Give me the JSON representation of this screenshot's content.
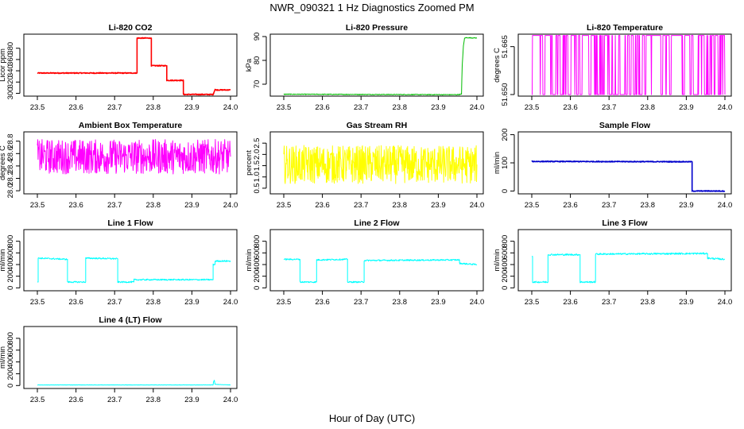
{
  "figure": {
    "title": "NWR_090321  1 Hz Diagnostics Zoomed PM",
    "xlabel": "Hour of Day (UTC)"
  },
  "chart_data": [
    {
      "id": "co2",
      "type": "line",
      "title": "Li-820 CO2",
      "ylabel": "Licor ppm",
      "color": "#ff0000",
      "xlim": [
        23.5,
        24.0
      ],
      "ylim": [
        295,
        405
      ],
      "xticks": [
        "23.5",
        "23.6",
        "23.7",
        "23.8",
        "23.9",
        "24.0"
      ],
      "yticks": [
        300,
        320,
        340,
        360,
        380
      ],
      "x": [
        23.5,
        23.758,
        23.758,
        23.795,
        23.795,
        23.835,
        23.835,
        23.878,
        23.878,
        23.955,
        23.955,
        23.96,
        23.96,
        24.0
      ],
      "values": [
        336,
        336,
        398,
        398,
        349,
        349,
        323,
        323,
        298,
        298,
        298,
        307,
        306,
        306
      ],
      "noise": 0.8
    },
    {
      "id": "pressure",
      "type": "line",
      "title": "Li-820 Pressure",
      "ylabel": "kPa",
      "color": "#00bb00",
      "xlim": [
        23.5,
        24.0
      ],
      "ylim": [
        65,
        91
      ],
      "xticks": [
        "23.5",
        "23.6",
        "23.7",
        "23.8",
        "23.9",
        "24.0"
      ],
      "yticks": [
        70,
        80,
        90
      ],
      "x": [
        23.5,
        23.948,
        23.96,
        23.962,
        23.965,
        23.968,
        23.97,
        24.0
      ],
      "values": [
        65.8,
        65.6,
        65.8,
        78,
        86,
        89.3,
        89.5,
        89.4
      ],
      "noise": 0.15
    },
    {
      "id": "licor_temp",
      "type": "line",
      "title": "Li-820 Temperature",
      "ylabel": "degrees C",
      "color": "#ff00ff",
      "xlim": [
        23.5,
        24.0
      ],
      "ylim": [
        51.6495,
        51.6689
      ],
      "xticks": [
        "23.5",
        "23.6",
        "23.7",
        "23.8",
        "23.9",
        "24.0"
      ],
      "yticks": [
        51.65,
        51.665
      ],
      "ytick_labels": [
        "51.650",
        "51.665"
      ],
      "levels": [
        51.65,
        51.6685
      ],
      "noise": 0
    },
    {
      "id": "ambient_box",
      "type": "line",
      "title": "Ambient Box Temperature",
      "ylabel": "degrees C",
      "color": "#ff00ff",
      "xlim": [
        23.5,
        24.0
      ],
      "ylim": [
        27.95,
        28.95
      ],
      "xticks": [
        "23.5",
        "23.6",
        "23.7",
        "23.8",
        "23.9",
        "24.0"
      ],
      "yticks": [
        28.0,
        28.2,
        28.4,
        28.6,
        28.8
      ],
      "ytick_labels": [
        "28.0",
        "28.2",
        "28.4",
        "28.6",
        "28.8"
      ],
      "x": [
        23.5,
        24.0
      ],
      "values": [
        28.55,
        28.55
      ],
      "noise": 0.28
    },
    {
      "id": "gas_rh",
      "type": "line",
      "title": "Gas Stream RH",
      "ylabel": "percent",
      "color": "#ffff00",
      "xlim": [
        23.5,
        24.0
      ],
      "ylim": [
        0.25,
        3.0
      ],
      "xticks": [
        "23.5",
        "23.6",
        "23.7",
        "23.8",
        "23.9",
        "24.0"
      ],
      "yticks": [
        0.5,
        1.0,
        1.5,
        2.0,
        2.5
      ],
      "ytick_labels": [
        "0.5",
        "1.0",
        "1.5",
        "2.0",
        "2.5"
      ],
      "x": [
        23.5,
        24.0
      ],
      "values": [
        1.55,
        1.55
      ],
      "noise": 0.85
    },
    {
      "id": "sample_flow",
      "type": "line",
      "title": "Sample Flow",
      "ylabel": "ml/min",
      "color": "#0000cc",
      "xlim": [
        23.5,
        24.0
      ],
      "ylim": [
        -10,
        210
      ],
      "xticks": [
        "23.5",
        "23.6",
        "23.7",
        "23.8",
        "23.9",
        "24.0"
      ],
      "yticks": [
        0,
        100,
        200
      ],
      "x": [
        23.5,
        23.915,
        23.915,
        24.0
      ],
      "values": [
        105,
        104,
        0,
        0
      ],
      "noise": 1.5
    },
    {
      "id": "line1",
      "type": "line",
      "title": "Line 1 Flow",
      "ylabel": "ml/min",
      "color": "#00ffff",
      "xlim": [
        23.5,
        24.0
      ],
      "ylim": [
        -50,
        1000
      ],
      "xticks": [
        "23.5",
        "23.6",
        "23.7",
        "23.8",
        "23.9",
        "24.0"
      ],
      "yticks": [
        0,
        200,
        400,
        600,
        800
      ],
      "x": [
        23.5,
        23.502,
        23.502,
        23.578,
        23.578,
        23.625,
        23.625,
        23.708,
        23.708,
        23.75,
        23.75,
        23.955,
        23.955,
        23.96,
        23.96,
        24.0
      ],
      "values": [
        100,
        100,
        510,
        490,
        100,
        100,
        510,
        500,
        100,
        100,
        140,
        140,
        400,
        400,
        460,
        460
      ],
      "noise": 12
    },
    {
      "id": "line2",
      "type": "line",
      "title": "Line 2 Flow",
      "ylabel": "ml/min",
      "color": "#00ffff",
      "xlim": [
        23.5,
        24.0
      ],
      "ylim": [
        -50,
        1000
      ],
      "xticks": [
        "23.5",
        "23.6",
        "23.7",
        "23.8",
        "23.9",
        "24.0"
      ],
      "yticks": [
        0,
        200,
        400,
        600,
        800
      ],
      "x": [
        23.5,
        23.542,
        23.542,
        23.585,
        23.585,
        23.665,
        23.665,
        23.708,
        23.708,
        23.955,
        23.955,
        24.0
      ],
      "values": [
        490,
        490,
        100,
        100,
        480,
        490,
        100,
        100,
        470,
        480,
        420,
        400
      ],
      "noise": 12
    },
    {
      "id": "line3",
      "type": "line",
      "title": "Line 3 Flow",
      "ylabel": "ml/min",
      "color": "#00ffff",
      "xlim": [
        23.5,
        24.0
      ],
      "ylim": [
        -50,
        1000
      ],
      "xticks": [
        "23.5",
        "23.6",
        "23.7",
        "23.8",
        "23.9",
        "24.0"
      ],
      "yticks": [
        0,
        200,
        400,
        600,
        800
      ],
      "x": [
        23.5,
        23.502,
        23.502,
        23.542,
        23.542,
        23.625,
        23.625,
        23.665,
        23.665,
        23.955,
        23.955,
        24.0
      ],
      "values": [
        540,
        540,
        100,
        100,
        570,
        570,
        100,
        100,
        580,
        590,
        510,
        490
      ],
      "noise": 14
    },
    {
      "id": "line4",
      "type": "line",
      "title": "Line 4 (LT) Flow",
      "ylabel": "ml/min",
      "color": "#00ffff",
      "xlim": [
        23.5,
        24.0
      ],
      "ylim": [
        -50,
        1000
      ],
      "xticks": [
        "23.5",
        "23.6",
        "23.7",
        "23.8",
        "23.9",
        "24.0"
      ],
      "yticks": [
        0,
        200,
        400,
        600,
        800
      ],
      "x": [
        23.5,
        23.955,
        23.956,
        23.958,
        23.96,
        24.0
      ],
      "values": [
        10,
        10,
        60,
        90,
        20,
        10
      ],
      "noise": 2
    }
  ]
}
